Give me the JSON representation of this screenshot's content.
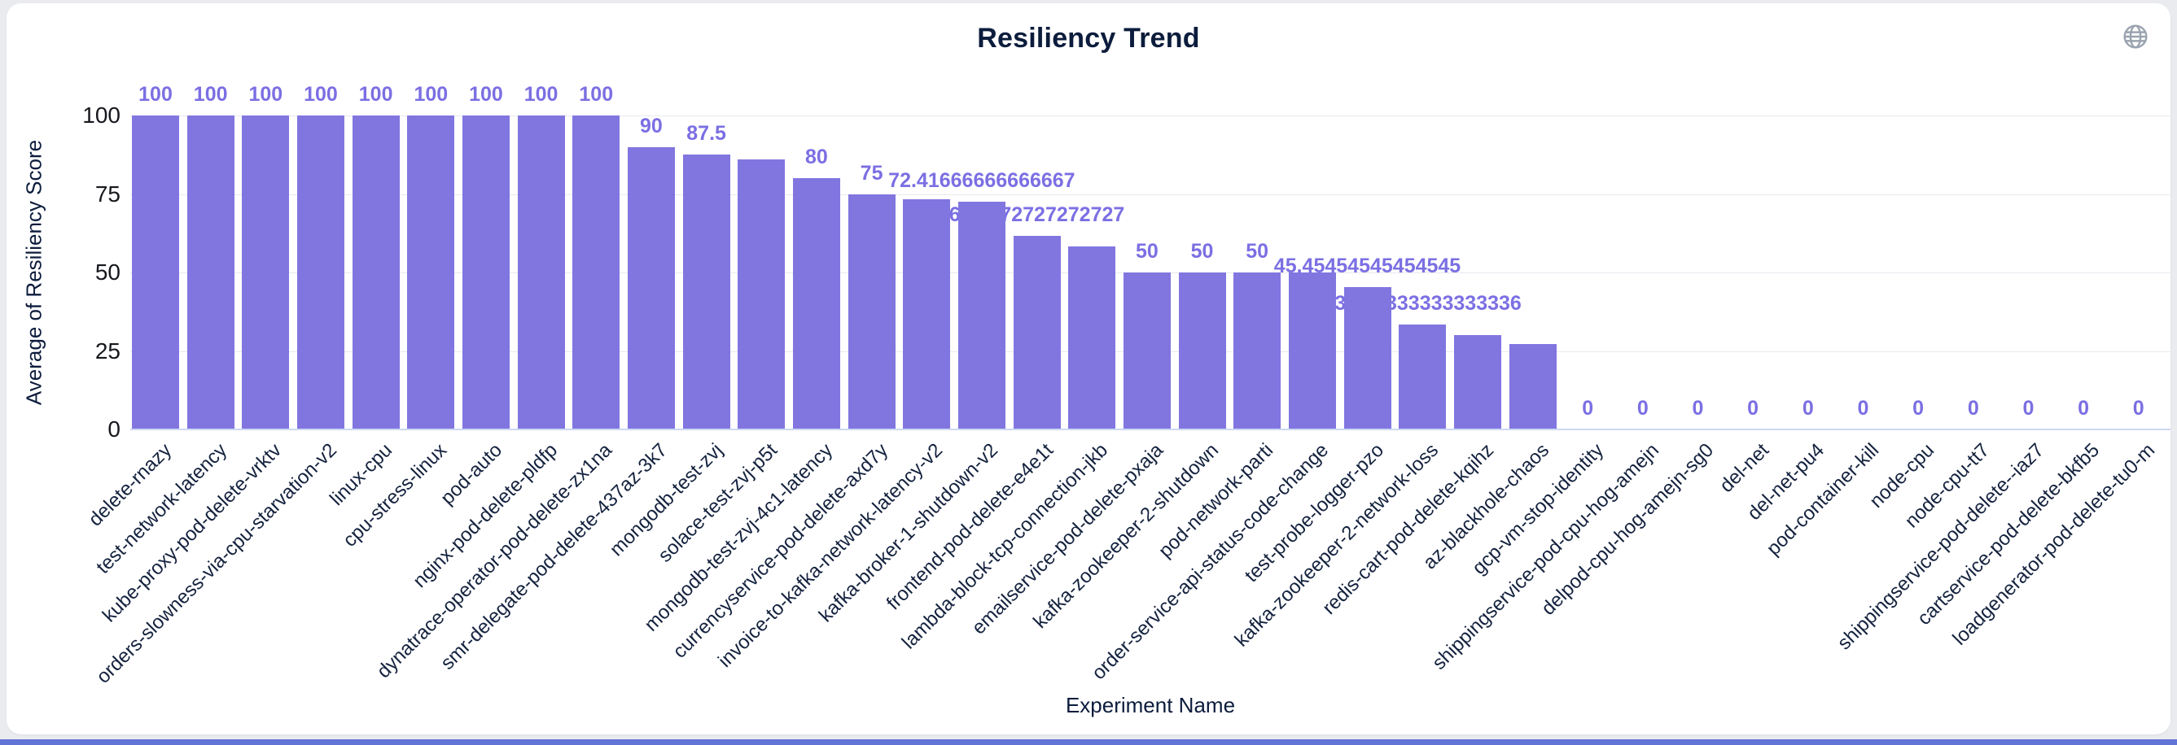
{
  "header": {
    "title": "Resiliency Trend"
  },
  "icons": {
    "top_right": "globe-icon"
  },
  "axes": {
    "y_title": "Average of Resiliency Score",
    "x_title": "Experiment Name",
    "y_tick_labels": [
      "0",
      "25",
      "50",
      "75",
      "100"
    ]
  },
  "colors": {
    "bar": "#8176E0",
    "value_label": "#7B6FE3",
    "title_text": "#0C1C3C",
    "axis_label_text": "#15233F",
    "y_tick_text": "#16181D",
    "gridline": "#E8E9EE",
    "axis_line": "#CDD8F3",
    "page_background": "#E9EBEF",
    "card_background": "#FFFFFF",
    "bottom_strip": "#6274D5",
    "globe_icon": "#9AA3AF"
  },
  "chart_data": {
    "type": "bar",
    "title": "Resiliency Trend",
    "xlabel": "Experiment Name",
    "ylabel": "Average of Resiliency Score",
    "ylim": [
      0,
      100
    ],
    "yticks": [
      0,
      25,
      50,
      75,
      100
    ],
    "grid": true,
    "legend": false,
    "categories": [
      "delete-rnazy",
      "test-network-latency",
      "kube-proxy-pod-delete-vrktv",
      "orders-slowness-via-cpu-starvation-v2",
      "linux-cpu",
      "cpu-stress-linux",
      "pod-auto",
      "nginx-pod-delete-pldfp",
      "dynatrace-operator-pod-delete-zx1na",
      "smr-delegate-pod-delete-437az-3k7",
      "mongodb-test-zvj",
      "solace-test-zvj-p5t",
      "mongodb-test-zvj-4c1-latency",
      "currencyservice-pod-delete-axd7y",
      "invoice-to-kafka-network-latency-v2",
      "kafka-broker-1-shutdown-v2",
      "frontend-pod-delete-e4e1t",
      "lambda-block-tcp-connection-jkb",
      "emailservice-pod-delete-pxaja",
      "kafka-zookeeper-2-shutdown",
      "pod-network-parti",
      "order-service-api-status-code-change",
      "test-probe-logger-pzo",
      "kafka-zookeeper-2-network-loss",
      "redis-cart-pod-delete-kqihz",
      "az-blackhole-chaos",
      "gcp-vm-stop-identity",
      "shippingservice-pod-cpu-hog-amejn",
      "delpod-cpu-hog-amejn-sg0",
      "del-net",
      "del-net-pu4",
      "pod-container-kill",
      "node-cpu",
      "node-cpu-tt7",
      "shippingservice-pod-delete--iaz7",
      "cartservice-pod-delete-bkfb5",
      "loadgenerator-pod-delete-tu0-m"
    ],
    "values": [
      100,
      100,
      100,
      100,
      100,
      100,
      100,
      100,
      100,
      90,
      87.5,
      86,
      80,
      75,
      73.3,
      72.41666666666667,
      61.7272727272727,
      58.3,
      50,
      50,
      50,
      50,
      45.45454545454545,
      33.333333333333336,
      30,
      27.3,
      0,
      0,
      0,
      0,
      0,
      0,
      0,
      0,
      0,
      0,
      0
    ],
    "value_labels": [
      "100",
      "100",
      "100",
      "100",
      "100",
      "100",
      "100",
      "100",
      "100",
      "90",
      "87.5",
      "",
      "80",
      "75",
      "",
      "72.41666666666667",
      "61.7272727272727",
      "",
      "50",
      "50",
      "50",
      "",
      "45.45454545454545",
      "33.333333333333336",
      "",
      "",
      "0",
      "0",
      "0",
      "0",
      "0",
      "0",
      "0",
      "0",
      "0",
      "0",
      "0"
    ]
  }
}
